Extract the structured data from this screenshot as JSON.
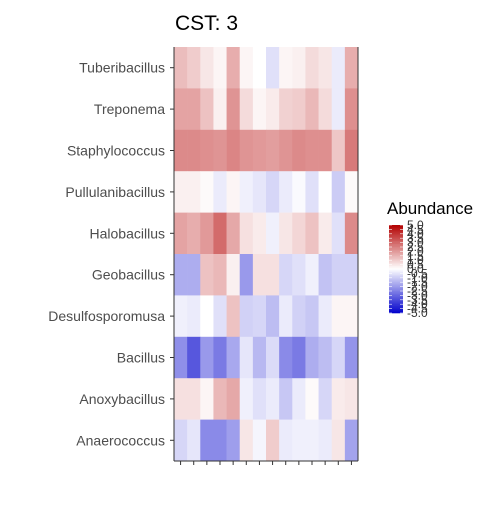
{
  "chart_data": {
    "type": "heatmap",
    "title": "CST: 3",
    "rows": [
      "Tuberibacillus",
      "Treponema",
      "Staphylococcus",
      "Pullulanibacillus",
      "Halobacillus",
      "Geobacillus",
      "Desulfosporomusa",
      "Bacillus",
      "Anoxybacillus",
      "Anaerococcus"
    ],
    "n_columns": 14,
    "x_tick_labels": [],
    "values": [
      [
        1.3,
        1.0,
        0.5,
        0.2,
        1.6,
        0.2,
        0.0,
        -0.6,
        0.2,
        0.3,
        0.7,
        0.5,
        -0.4,
        1.6
      ],
      [
        1.8,
        1.8,
        1.2,
        0.3,
        2.1,
        0.7,
        0.2,
        0.4,
        0.9,
        1.0,
        1.4,
        0.7,
        -0.4,
        2.2
      ],
      [
        2.3,
        2.3,
        2.2,
        2.1,
        2.4,
        2.1,
        2.0,
        1.9,
        2.1,
        2.3,
        2.2,
        2.2,
        1.1,
        2.6
      ],
      [
        0.3,
        0.3,
        0.1,
        -0.4,
        0.2,
        -0.3,
        -0.5,
        -0.8,
        -0.4,
        -0.1,
        -0.6,
        0.0,
        -1.0,
        0.1
      ],
      [
        1.8,
        1.6,
        2.0,
        2.9,
        1.7,
        0.6,
        0.4,
        -0.3,
        0.5,
        0.8,
        1.2,
        0.4,
        -0.6,
        2.3
      ],
      [
        -1.6,
        -1.6,
        1.2,
        1.4,
        0.3,
        -2.0,
        0.6,
        0.6,
        -0.8,
        -0.6,
        -0.3,
        -1.2,
        -0.9,
        -0.9
      ],
      [
        -0.3,
        -0.4,
        0.0,
        -0.6,
        1.2,
        -0.9,
        -0.8,
        -1.3,
        -0.4,
        -0.9,
        -1.1,
        -0.4,
        0.2,
        0.2
      ],
      [
        -2.2,
        -3.3,
        -2.0,
        -2.6,
        -1.7,
        -0.5,
        -1.4,
        -0.7,
        -2.3,
        -2.6,
        -1.6,
        -1.3,
        -0.8,
        -2.1
      ],
      [
        0.6,
        0.6,
        0.2,
        1.4,
        1.7,
        -0.3,
        -0.6,
        -0.4,
        -1.1,
        -0.4,
        0.1,
        -0.8,
        0.4,
        0.5
      ],
      [
        -0.8,
        -0.5,
        -2.3,
        -2.3,
        -1.9,
        0.5,
        -0.2,
        1.0,
        -0.4,
        -0.3,
        -0.3,
        -0.4,
        0.5,
        -1.8
      ]
    ],
    "legend": {
      "title": "Abundance",
      "range": [
        -5.0,
        5.0
      ],
      "labels": [
        "5.0",
        "4.5",
        "4.0",
        "3.5",
        "3.0",
        "2.5",
        "2.0",
        "1.5",
        "1.0",
        "0.5",
        "0.0",
        "-0.5",
        "-1.0",
        "-1.5",
        "-2.0",
        "-2.5",
        "-3.0",
        "-3.5",
        "-4.0",
        "-4.5",
        "-5.0"
      ],
      "colors": {
        "low": "#0000cc",
        "mid": "#ffffff",
        "high": "#b30000"
      }
    }
  }
}
